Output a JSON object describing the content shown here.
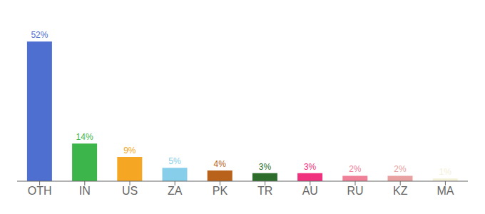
{
  "chart_data": {
    "type": "bar",
    "categories": [
      "OTH",
      "IN",
      "US",
      "ZA",
      "PK",
      "TR",
      "AU",
      "RU",
      "KZ",
      "MA"
    ],
    "values": [
      52,
      14,
      9,
      5,
      4,
      3,
      3,
      2,
      2,
      1
    ],
    "value_labels": [
      "52%",
      "14%",
      "9%",
      "5%",
      "4%",
      "3%",
      "3%",
      "2%",
      "2%",
      "1%"
    ],
    "colors": [
      "#4f6fd0",
      "#3cb54a",
      "#f5a623",
      "#87ceeb",
      "#b8621b",
      "#2d6e2d",
      "#f0317e",
      "#f08098",
      "#e8a0a0",
      "#f5f0d8"
    ],
    "ylim": [
      0,
      60
    ],
    "grid": false,
    "data_labels": true,
    "tick_labels": "x"
  }
}
